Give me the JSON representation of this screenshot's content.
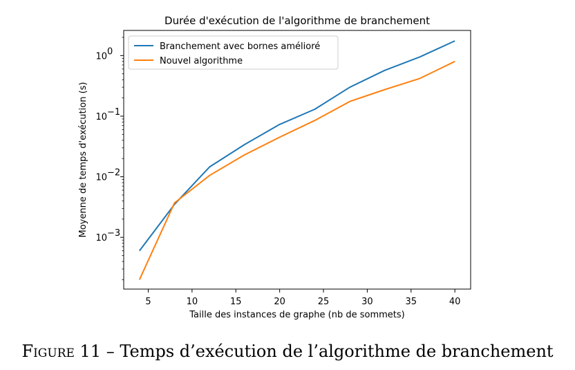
{
  "colors": {
    "series1": "#1f77b4",
    "series2": "#ff7f0e",
    "axes": "#000000"
  },
  "chart_data": {
    "type": "line",
    "title": "Durée d'exécution de l'algorithme de branchement",
    "xlabel": "Taille des instances de graphe (nb de sommets)",
    "ylabel": "Moyenne de temps d'exécution (s)",
    "yscale": "log",
    "xlim": [
      2.2,
      41.8
    ],
    "ylim": [
      0.00014,
      2.6
    ],
    "x_ticks": [
      5,
      10,
      15,
      20,
      25,
      30,
      35,
      40
    ],
    "y_ticks": [
      {
        "value": 0.001,
        "base": "10",
        "exp": "−3"
      },
      {
        "value": 0.01,
        "base": "10",
        "exp": "−2"
      },
      {
        "value": 0.1,
        "base": "10",
        "exp": "−1"
      },
      {
        "value": 1,
        "base": "10",
        "exp": "0"
      }
    ],
    "x": [
      4,
      8,
      12,
      16,
      20,
      24,
      28,
      32,
      36,
      40
    ],
    "series": [
      {
        "name": "Branchement avec bornes amélioré",
        "color": "#1f77b4",
        "values": [
          0.0006,
          0.0035,
          0.0145,
          0.034,
          0.073,
          0.13,
          0.3,
          0.57,
          0.95,
          1.75
        ]
      },
      {
        "name": "Nouvel algorithme",
        "color": "#ff7f0e",
        "values": [
          0.0002,
          0.0037,
          0.0105,
          0.023,
          0.045,
          0.085,
          0.175,
          0.275,
          0.42,
          0.8
        ]
      }
    ],
    "legend_position": "top-left",
    "grid": false
  },
  "caption": {
    "prefix": "Figure 11",
    "separator": " – ",
    "text": "Temps d’exécution de l’algorithme de branchement"
  }
}
